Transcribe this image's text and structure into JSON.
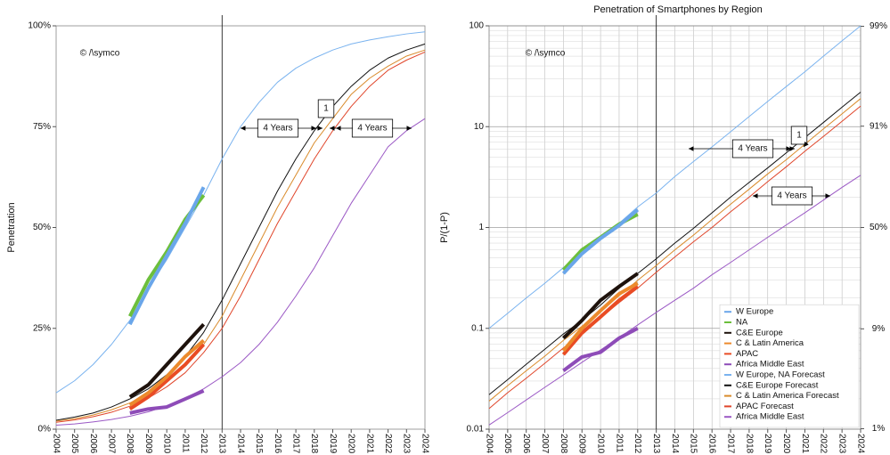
{
  "chart_data": [
    {
      "type": "line",
      "ylabel": "Penetration",
      "x": [
        2004,
        2005,
        2006,
        2007,
        2008,
        2009,
        2010,
        2011,
        2012,
        2013,
        2014,
        2015,
        2016,
        2017,
        2018,
        2019,
        2020,
        2021,
        2022,
        2023,
        2024
      ],
      "xlim": [
        2004,
        2024
      ],
      "xticks": [
        2004,
        2005,
        2006,
        2007,
        2008,
        2009,
        2010,
        2011,
        2012,
        2013,
        2014,
        2015,
        2016,
        2017,
        2018,
        2019,
        2020,
        2021,
        2022,
        2023,
        2024
      ],
      "ylim": [
        0,
        100
      ],
      "yticks": [
        {
          "value": 0,
          "label": "0%"
        },
        {
          "value": 25,
          "label": "25%"
        },
        {
          "value": 50,
          "label": "50%"
        },
        {
          "value": 75,
          "label": "75%"
        },
        {
          "value": 100,
          "label": "100%"
        }
      ],
      "vline": 2013,
      "annotations": [
        {
          "text": "© /\\symco"
        },
        {
          "text": "4 Years"
        },
        {
          "text": "1"
        },
        {
          "text": "4 Years"
        }
      ],
      "series": [
        {
          "color": "#6aa6ea",
          "values": [
            null,
            null,
            null,
            null,
            26,
            35,
            43,
            51,
            60,
            null,
            null,
            null,
            null,
            null,
            null,
            null,
            null,
            null,
            null,
            null,
            null
          ]
        },
        {
          "color": "#6cbf3c",
          "values": [
            null,
            null,
            null,
            null,
            28,
            37,
            44,
            52,
            58,
            null,
            null,
            null,
            null,
            null,
            null,
            null,
            null,
            null,
            null,
            null,
            null
          ]
        },
        {
          "color": "#1e120c",
          "values": [
            null,
            null,
            null,
            null,
            8,
            11,
            16,
            21,
            26,
            null,
            null,
            null,
            null,
            null,
            null,
            null,
            null,
            null,
            null,
            null,
            null
          ]
        },
        {
          "color": "#ec8a2c",
          "values": [
            null,
            null,
            null,
            null,
            6,
            9,
            13,
            18,
            22,
            null,
            null,
            null,
            null,
            null,
            null,
            null,
            null,
            null,
            null,
            null,
            null
          ]
        },
        {
          "color": "#e94c24",
          "values": [
            null,
            null,
            null,
            null,
            5,
            8,
            12,
            16,
            21,
            null,
            null,
            null,
            null,
            null,
            null,
            null,
            null,
            null,
            null,
            null,
            null
          ]
        },
        {
          "color": "#8e4cb8",
          "values": [
            null,
            null,
            null,
            null,
            4,
            5,
            5.5,
            7.5,
            9.5,
            null,
            null,
            null,
            null,
            null,
            null,
            null,
            null,
            null,
            null,
            null,
            null
          ]
        },
        {
          "color": "#7ab3ef",
          "values": [
            9,
            12,
            16,
            21,
            27,
            35,
            42,
            50,
            58,
            67,
            75,
            81,
            86,
            89.5,
            92,
            94,
            95.5,
            96.5,
            97.3,
            98,
            98.5
          ]
        },
        {
          "color": "#111111",
          "values": [
            2.2,
            3,
            4,
            5.5,
            7.5,
            10,
            13.5,
            18,
            24,
            32,
            41,
            50,
            59,
            67,
            74,
            80,
            85,
            89,
            92,
            94,
            95.5
          ]
        },
        {
          "color": "#d98b2b",
          "values": [
            2,
            2.6,
            3.5,
            4.8,
            6.5,
            8.8,
            12,
            16,
            21,
            28,
            37,
            46,
            55,
            63,
            71,
            77,
            83,
            87,
            90,
            92.5,
            94
          ]
        },
        {
          "color": "#e0452a",
          "values": [
            1.7,
            2.3,
            3.1,
            4.2,
            5.7,
            7.7,
            10.5,
            14,
            19,
            25,
            33,
            42,
            51,
            59,
            67,
            74,
            80,
            85,
            89,
            91.5,
            93.5
          ]
        },
        {
          "color": "#9b59c5",
          "values": [
            1,
            1.3,
            1.8,
            2.4,
            3.2,
            4.3,
            5.8,
            7.7,
            10,
            13,
            16.5,
            21,
            26.5,
            33,
            40,
            48,
            56,
            63,
            70,
            74,
            77
          ]
        }
      ]
    },
    {
      "type": "line",
      "title": "Penetration of Smartphones by Region",
      "ylabel": "P/(1-P)",
      "yscale": "log",
      "grid": true,
      "legend": "bottom-right",
      "x": [
        2004,
        2005,
        2006,
        2007,
        2008,
        2009,
        2010,
        2011,
        2012,
        2013,
        2014,
        2015,
        2016,
        2017,
        2018,
        2019,
        2020,
        2021,
        2022,
        2023,
        2024
      ],
      "xlim": [
        2004,
        2024
      ],
      "xticks": [
        2004,
        2005,
        2006,
        2007,
        2008,
        2009,
        2010,
        2011,
        2012,
        2013,
        2014,
        2015,
        2016,
        2017,
        2018,
        2019,
        2020,
        2021,
        2022,
        2023,
        2024
      ],
      "ylim": [
        0.01,
        100
      ],
      "yticks": [
        0.01,
        0.1,
        1,
        10,
        100
      ],
      "y2scale": "logit",
      "y2lim": [
        0.990099,
        99.009901
      ],
      "y2ticks": [
        {
          "value": 1,
          "label": "1%"
        },
        {
          "value": 9,
          "label": "9%"
        },
        {
          "value": 50,
          "label": "50%"
        },
        {
          "value": 91,
          "label": "91%"
        },
        {
          "value": 99,
          "label": "99%"
        }
      ],
      "vline": 2013,
      "annotations": [
        {
          "text": "© /\\symco"
        },
        {
          "text": "4 Years"
        },
        {
          "text": "1"
        },
        {
          "text": "4 Years"
        }
      ],
      "series": [
        {
          "name": "W Europe",
          "color": "#6aa6ea",
          "values": [
            null,
            null,
            null,
            null,
            0.35,
            0.55,
            0.78,
            1.05,
            1.5,
            null,
            null,
            null,
            null,
            null,
            null,
            null,
            null,
            null,
            null,
            null,
            null
          ]
        },
        {
          "name": "NA",
          "color": "#6cbf3c",
          "values": [
            null,
            null,
            null,
            null,
            0.38,
            0.6,
            0.8,
            1.08,
            1.35,
            null,
            null,
            null,
            null,
            null,
            null,
            null,
            null,
            null,
            null,
            null,
            null
          ]
        },
        {
          "name": "C&E Europe",
          "color": "#1e120c",
          "values": [
            null,
            null,
            null,
            null,
            0.08,
            0.12,
            0.19,
            0.26,
            0.35,
            null,
            null,
            null,
            null,
            null,
            null,
            null,
            null,
            null,
            null,
            null,
            null
          ]
        },
        {
          "name": "C & Latin America",
          "color": "#ec8a2c",
          "values": [
            null,
            null,
            null,
            null,
            0.06,
            0.1,
            0.15,
            0.22,
            0.28,
            null,
            null,
            null,
            null,
            null,
            null,
            null,
            null,
            null,
            null,
            null,
            null
          ]
        },
        {
          "name": "APAC",
          "color": "#e94c24",
          "values": [
            null,
            null,
            null,
            null,
            0.055,
            0.09,
            0.13,
            0.19,
            0.26,
            null,
            null,
            null,
            null,
            null,
            null,
            null,
            null,
            null,
            null,
            null,
            null
          ]
        },
        {
          "name": "Africa Middle East",
          "color": "#8e4cb8",
          "values": [
            null,
            null,
            null,
            null,
            0.038,
            0.052,
            0.058,
            0.08,
            0.1,
            null,
            null,
            null,
            null,
            null,
            null,
            null,
            null,
            null,
            null,
            null,
            null
          ]
        },
        {
          "name": "W Europe, NA Forecast",
          "color": "#7ab3ef",
          "values": [
            0.1,
            0.141,
            0.2,
            0.28,
            0.4,
            0.56,
            0.79,
            1.1,
            1.6,
            2.2,
            3.2,
            4.5,
            6.3,
            8.9,
            12.6,
            17.8,
            25,
            35,
            50,
            71,
            100
          ]
        },
        {
          "name": "C&E Europe Forecast",
          "color": "#111111",
          "values": [
            0.022,
            0.031,
            0.044,
            0.062,
            0.088,
            0.12,
            0.17,
            0.25,
            0.35,
            0.49,
            0.7,
            0.98,
            1.4,
            2,
            2.8,
            3.9,
            5.5,
            7.8,
            11,
            15.6,
            22
          ]
        },
        {
          "name": "C & Latin America Forecast",
          "color": "#d98b2b",
          "values": [
            0.019,
            0.027,
            0.038,
            0.053,
            0.076,
            0.105,
            0.15,
            0.21,
            0.3,
            0.42,
            0.6,
            0.84,
            1.2,
            1.7,
            2.4,
            3.4,
            4.7,
            6.7,
            9.5,
            13.4,
            19
          ]
        },
        {
          "name": "APAC Forecast",
          "color": "#e0452a",
          "values": [
            0.016,
            0.023,
            0.032,
            0.045,
            0.064,
            0.09,
            0.127,
            0.18,
            0.25,
            0.36,
            0.51,
            0.72,
            1,
            1.43,
            2,
            2.85,
            4,
            5.7,
            8,
            11.3,
            16
          ]
        },
        {
          "name": "Africa Middle East",
          "color": "#9b59c5",
          "values": [
            0.011,
            0.0146,
            0.0195,
            0.026,
            0.0345,
            0.046,
            0.061,
            0.081,
            0.108,
            0.144,
            0.19,
            0.25,
            0.34,
            0.45,
            0.6,
            0.8,
            1.06,
            1.4,
            1.87,
            2.5,
            3.3
          ]
        }
      ]
    }
  ]
}
